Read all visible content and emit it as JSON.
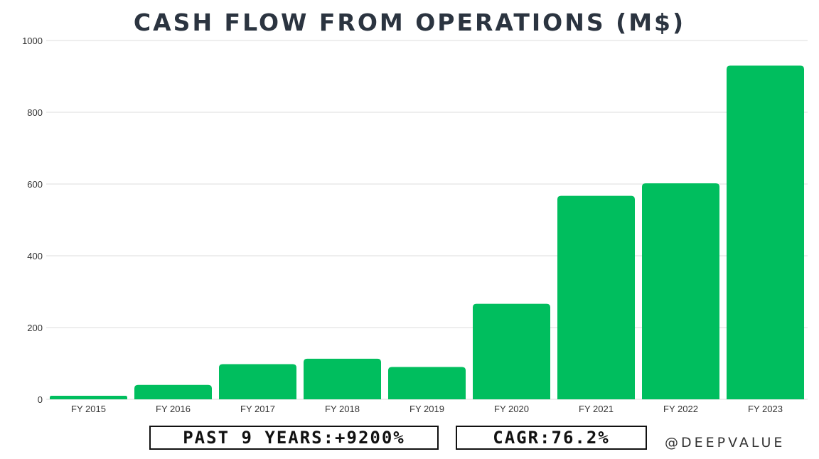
{
  "chart_data": {
    "type": "bar",
    "title": "CASH FLOW FROM OPERATIONS (M$)",
    "categories": [
      "FY 2015",
      "FY 2016",
      "FY 2017",
      "FY 2018",
      "FY 2019",
      "FY 2020",
      "FY 2021",
      "FY 2022",
      "FY 2023"
    ],
    "values": [
      10,
      40,
      98,
      113,
      90,
      266,
      567,
      602,
      930
    ],
    "ylim": [
      0,
      1000
    ],
    "yticks": [
      0,
      200,
      400,
      600,
      800,
      1000
    ],
    "grid": true,
    "legend": "none",
    "bar_color": "#00be5e"
  },
  "stats": {
    "growth": "PAST 9 YEARS:+9200%",
    "cagr": "CAGR:76.2%"
  },
  "watermark": "@DEEPVALUE"
}
